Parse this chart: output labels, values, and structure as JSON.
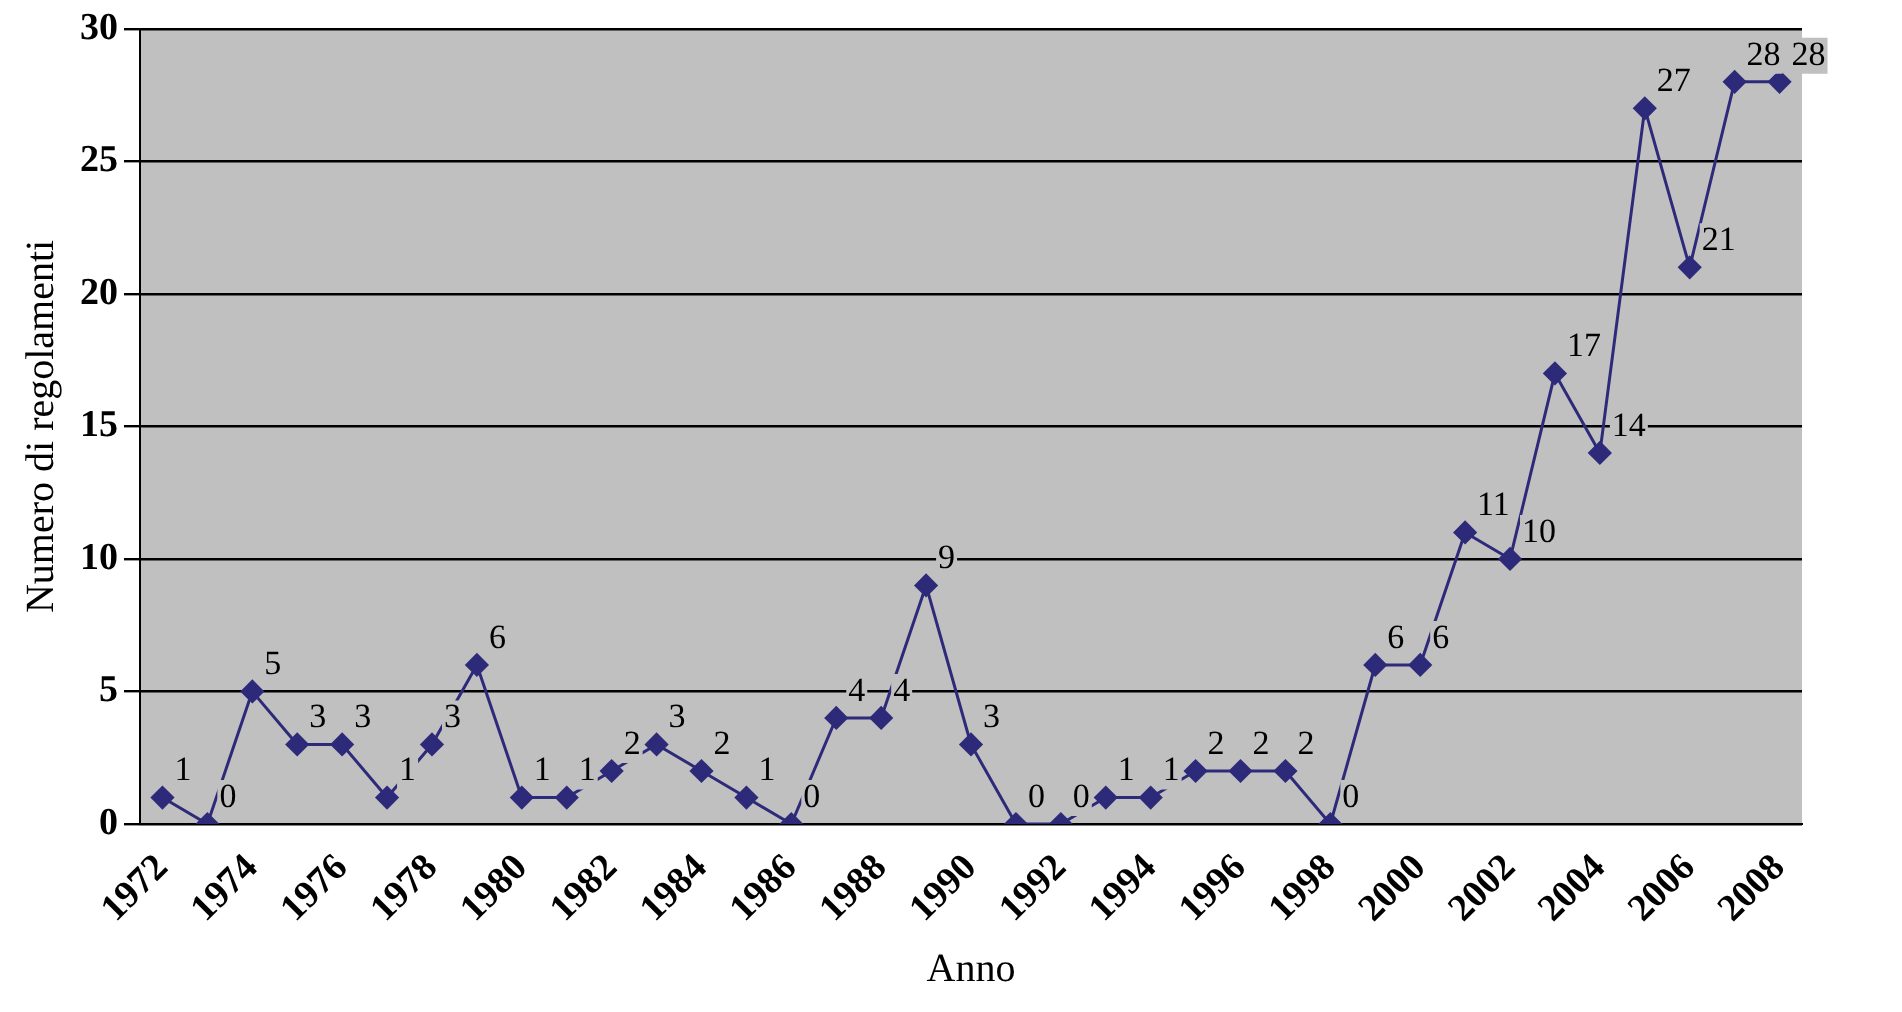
{
  "chart_data": {
    "type": "line",
    "xlabel": "Anno",
    "ylabel": "Numero di regolamenti",
    "categories": [
      "1972",
      null,
      "1974",
      null,
      "1976",
      null,
      "1978",
      null,
      "1980",
      null,
      "1982",
      null,
      "1984",
      null,
      "1986",
      null,
      "1988",
      null,
      "1990",
      null,
      "1992",
      null,
      "1994",
      null,
      "1996",
      null,
      "1998",
      null,
      "2000",
      null,
      "2002",
      null,
      "2004",
      null,
      "2006",
      null,
      "2008"
    ],
    "series": [
      {
        "color": "#2e2a7a",
        "values": [
          1,
          0,
          5,
          3,
          3,
          1,
          3,
          6,
          1,
          1,
          2,
          3,
          2,
          1,
          0,
          4,
          4,
          9,
          3,
          0,
          0,
          1,
          1,
          2,
          2,
          2,
          0,
          6,
          6,
          11,
          10,
          17,
          14,
          27,
          21,
          28,
          28
        ]
      }
    ],
    "ylim": [
      0,
      30
    ],
    "yticks": [
      0,
      5,
      10,
      15,
      20,
      25,
      30
    ],
    "grid": "y",
    "marker": "diamond",
    "line_style": "solid",
    "data_labels": true,
    "legend": false
  }
}
